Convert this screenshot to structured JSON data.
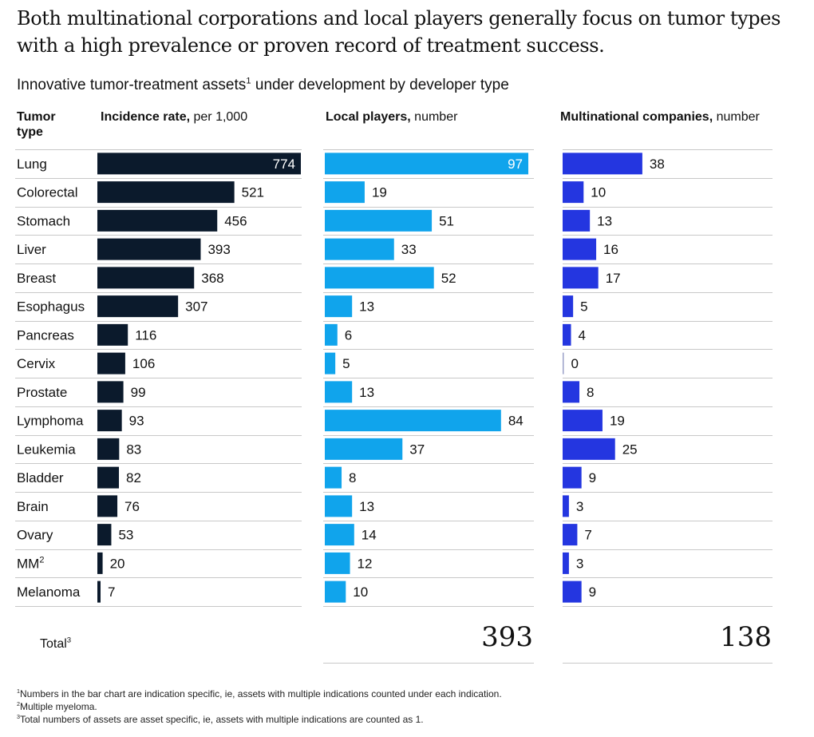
{
  "headline": "Both multinational corporations and local players generally focus on tumor types with a high prevalence or proven record of treatment success.",
  "subtitle": {
    "text": "Innovative tumor-treatment assets",
    "sup": "1",
    "rest": " under development by developer type"
  },
  "headers": {
    "tumor": "Tumor",
    "tumor2": "type",
    "incidence_bold": "Incidence rate,",
    "incidence_rest": " per 1,000",
    "local_bold": "Local players,",
    "local_rest": " number",
    "multi_bold": "Multinational companies,",
    "multi_rest": " number"
  },
  "colors": {
    "incidence": "#0b1a2c",
    "local": "#10a4ec",
    "multi": "#2436e0",
    "grid": "#c8c8c8"
  },
  "chart_data": {
    "type": "bar",
    "orientation": "horizontal",
    "categories": [
      "Lung",
      "Colorectal",
      "Stomach",
      "Liver",
      "Breast",
      "Esophagus",
      "Pancreas",
      "Cervix",
      "Prostate",
      "Lymphoma",
      "Leukemia",
      "Bladder",
      "Brain",
      "Ovary",
      "MM",
      "Melanoma"
    ],
    "category_sups": [
      "",
      "",
      "",
      "",
      "",
      "",
      "",
      "",
      "",
      "",
      "",
      "",
      "",
      "",
      "2",
      ""
    ],
    "series": [
      {
        "name": "Incidence rate, per 1,000",
        "values": [
          774,
          521,
          456,
          393,
          368,
          307,
          116,
          106,
          99,
          93,
          83,
          82,
          76,
          53,
          20,
          7
        ],
        "max": 774
      },
      {
        "name": "Local players, number",
        "values": [
          97,
          19,
          51,
          33,
          52,
          13,
          6,
          5,
          13,
          84,
          37,
          8,
          13,
          14,
          12,
          10
        ],
        "max": 97
      },
      {
        "name": "Multinational companies, number",
        "values": [
          38,
          10,
          13,
          16,
          17,
          5,
          4,
          0,
          8,
          19,
          25,
          9,
          3,
          7,
          3,
          9
        ],
        "max": 97
      }
    ]
  },
  "totals": {
    "label": "Total",
    "sup": "3",
    "local": "393",
    "multi": "138"
  },
  "footnotes": [
    {
      "sup": "1",
      "text": "Numbers in the bar chart are indication specific, ie, assets with multiple indications counted under each indication."
    },
    {
      "sup": "2",
      "text": "Multiple myeloma."
    },
    {
      "sup": "3",
      "text": "Total numbers of assets are asset specific, ie, assets with multiple indications are counted as 1."
    }
  ]
}
